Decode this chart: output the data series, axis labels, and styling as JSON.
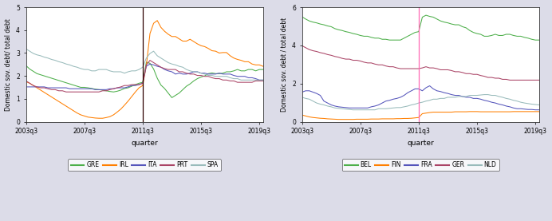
{
  "left_panel": {
    "ylabel": "Domestic sov. debt/ total debt",
    "xlabel": "quarter",
    "ylim": [
      0,
      5
    ],
    "yticks": [
      0,
      1,
      2,
      3,
      4,
      5
    ],
    "vline_x": 32,
    "vline_color": "#2f0000",
    "xtick_labels": [
      "2003q3",
      "2007q3",
      "2011q3",
      "2015q3",
      "2019q3"
    ],
    "xtick_positions": [
      0,
      16,
      32,
      48,
      64
    ],
    "series": {
      "GRE": {
        "color": "#4daf4a",
        "data": [
          2.45,
          2.3,
          2.2,
          2.1,
          2.05,
          2.0,
          1.95,
          1.9,
          1.85,
          1.8,
          1.75,
          1.7,
          1.65,
          1.6,
          1.55,
          1.5,
          1.5,
          1.48,
          1.45,
          1.42,
          1.4,
          1.38,
          1.35,
          1.32,
          1.3,
          1.33,
          1.38,
          1.45,
          1.48,
          1.55,
          1.62,
          1.68,
          1.72,
          2.6,
          2.55,
          2.3,
          1.9,
          1.6,
          1.45,
          1.25,
          1.05,
          1.15,
          1.25,
          1.4,
          1.55,
          1.65,
          1.78,
          1.88,
          1.95,
          2.0,
          2.1,
          2.13,
          2.1,
          2.1,
          2.12,
          2.18,
          2.18,
          2.22,
          2.28,
          2.22,
          2.22,
          2.28,
          2.28,
          2.22,
          2.28,
          2.28
        ]
      },
      "IRL": {
        "color": "#ff7f00",
        "data": [
          1.75,
          1.68,
          1.58,
          1.48,
          1.38,
          1.28,
          1.18,
          1.08,
          0.98,
          0.88,
          0.78,
          0.68,
          0.58,
          0.48,
          0.38,
          0.3,
          0.25,
          0.2,
          0.18,
          0.16,
          0.15,
          0.15,
          0.18,
          0.22,
          0.3,
          0.42,
          0.55,
          0.72,
          0.9,
          1.1,
          1.3,
          1.48,
          1.58,
          2.45,
          3.85,
          4.3,
          4.42,
          4.12,
          3.95,
          3.82,
          3.72,
          3.72,
          3.62,
          3.52,
          3.52,
          3.6,
          3.5,
          3.4,
          3.32,
          3.28,
          3.2,
          3.1,
          3.08,
          3.0,
          3.02,
          3.02,
          2.88,
          2.78,
          2.72,
          2.68,
          2.62,
          2.62,
          2.52,
          2.48,
          2.48,
          2.42
        ]
      },
      "ITA": {
        "color": "#5555bb",
        "data": [
          1.52,
          1.52,
          1.52,
          1.52,
          1.52,
          1.52,
          1.48,
          1.48,
          1.48,
          1.48,
          1.48,
          1.48,
          1.44,
          1.44,
          1.44,
          1.44,
          1.44,
          1.44,
          1.44,
          1.4,
          1.4,
          1.4,
          1.4,
          1.44,
          1.44,
          1.48,
          1.48,
          1.48,
          1.52,
          1.58,
          1.58,
          1.62,
          1.68,
          2.42,
          2.52,
          2.48,
          2.42,
          2.38,
          2.28,
          2.22,
          2.18,
          2.08,
          2.12,
          2.08,
          2.08,
          2.12,
          2.18,
          2.18,
          2.12,
          2.12,
          2.08,
          2.08,
          2.08,
          2.12,
          2.08,
          2.08,
          2.08,
          2.02,
          1.98,
          1.98,
          1.98,
          1.92,
          1.92,
          1.88,
          1.82,
          1.82
        ]
      },
      "PRT": {
        "color": "#aa4466",
        "data": [
          1.78,
          1.68,
          1.58,
          1.52,
          1.48,
          1.48,
          1.44,
          1.4,
          1.4,
          1.35,
          1.35,
          1.3,
          1.3,
          1.3,
          1.3,
          1.3,
          1.3,
          1.3,
          1.3,
          1.3,
          1.3,
          1.35,
          1.35,
          1.4,
          1.44,
          1.48,
          1.52,
          1.58,
          1.58,
          1.62,
          1.62,
          1.62,
          1.68,
          2.48,
          2.68,
          2.58,
          2.48,
          2.38,
          2.32,
          2.28,
          2.28,
          2.28,
          2.18,
          2.18,
          2.12,
          2.08,
          2.08,
          2.02,
          2.02,
          1.98,
          1.98,
          1.92,
          1.88,
          1.88,
          1.82,
          1.82,
          1.78,
          1.78,
          1.72,
          1.72,
          1.72,
          1.72,
          1.72,
          1.78,
          1.78,
          1.78
        ]
      },
      "SPA": {
        "color": "#99bbbb",
        "data": [
          3.18,
          3.08,
          2.98,
          2.92,
          2.88,
          2.82,
          2.78,
          2.72,
          2.68,
          2.62,
          2.58,
          2.52,
          2.48,
          2.42,
          2.38,
          2.32,
          2.28,
          2.28,
          2.22,
          2.22,
          2.28,
          2.28,
          2.28,
          2.22,
          2.18,
          2.18,
          2.18,
          2.12,
          2.18,
          2.22,
          2.22,
          2.28,
          2.38,
          2.78,
          2.98,
          3.08,
          2.88,
          2.78,
          2.68,
          2.58,
          2.52,
          2.48,
          2.42,
          2.38,
          2.28,
          2.22,
          2.18,
          2.18,
          2.12,
          2.08,
          2.02,
          2.02,
          1.98,
          1.98,
          1.98,
          1.98,
          1.92,
          1.88,
          1.88,
          1.82,
          1.82,
          1.82,
          1.82,
          1.82,
          1.82,
          1.82
        ]
      }
    }
  },
  "right_panel": {
    "ylabel": "Domestic sov. debt / total debt",
    "xlabel": "quarter",
    "ylim": [
      0,
      6
    ],
    "yticks": [
      0,
      2,
      4,
      6
    ],
    "vline_x": 32,
    "vline_color": "#ff69b4",
    "xtick_labels": [
      "2003q3",
      "2007q3",
      "2011q3",
      "2015q3",
      "2019q3"
    ],
    "xtick_positions": [
      0,
      16,
      32,
      48,
      64
    ],
    "series": {
      "BEL": {
        "color": "#4daf4a",
        "data": [
          5.5,
          5.38,
          5.28,
          5.22,
          5.18,
          5.12,
          5.08,
          5.02,
          4.98,
          4.88,
          4.82,
          4.78,
          4.72,
          4.68,
          4.62,
          4.58,
          4.52,
          4.48,
          4.48,
          4.42,
          4.38,
          4.38,
          4.32,
          4.32,
          4.28,
          4.28,
          4.28,
          4.28,
          4.38,
          4.48,
          4.58,
          4.68,
          4.72,
          5.48,
          5.58,
          5.52,
          5.48,
          5.38,
          5.28,
          5.22,
          5.18,
          5.12,
          5.08,
          5.08,
          4.98,
          4.92,
          4.78,
          4.68,
          4.62,
          4.58,
          4.48,
          4.48,
          4.52,
          4.58,
          4.52,
          4.52,
          4.58,
          4.58,
          4.52,
          4.48,
          4.48,
          4.42,
          4.38,
          4.32,
          4.28,
          4.28
        ]
      },
      "FIN": {
        "color": "#ff7f00",
        "data": [
          0.35,
          0.3,
          0.25,
          0.22,
          0.2,
          0.18,
          0.17,
          0.15,
          0.14,
          0.13,
          0.12,
          0.12,
          0.12,
          0.12,
          0.12,
          0.13,
          0.13,
          0.13,
          0.13,
          0.14,
          0.14,
          0.14,
          0.15,
          0.15,
          0.15,
          0.15,
          0.16,
          0.16,
          0.17,
          0.17,
          0.18,
          0.2,
          0.22,
          0.42,
          0.45,
          0.48,
          0.5,
          0.5,
          0.5,
          0.5,
          0.5,
          0.5,
          0.52,
          0.52,
          0.52,
          0.52,
          0.53,
          0.53,
          0.53,
          0.52,
          0.52,
          0.52,
          0.52,
          0.52,
          0.52,
          0.52,
          0.52,
          0.52,
          0.53,
          0.53,
          0.53,
          0.53,
          0.53,
          0.53,
          0.53,
          0.53
        ]
      },
      "FRA": {
        "color": "#5555bb",
        "data": [
          1.55,
          1.62,
          1.62,
          1.55,
          1.48,
          1.38,
          1.08,
          0.98,
          0.88,
          0.82,
          0.78,
          0.76,
          0.74,
          0.72,
          0.72,
          0.72,
          0.72,
          0.72,
          0.72,
          0.78,
          0.82,
          0.88,
          0.98,
          1.08,
          1.12,
          1.18,
          1.22,
          1.28,
          1.38,
          1.52,
          1.62,
          1.72,
          1.72,
          1.62,
          1.78,
          1.88,
          1.72,
          1.62,
          1.58,
          1.52,
          1.48,
          1.42,
          1.38,
          1.38,
          1.32,
          1.28,
          1.28,
          1.22,
          1.22,
          1.18,
          1.12,
          1.08,
          1.02,
          0.98,
          0.92,
          0.88,
          0.82,
          0.78,
          0.72,
          0.68,
          0.68,
          0.66,
          0.64,
          0.64,
          0.62,
          0.62
        ]
      },
      "GER": {
        "color": "#aa4466",
        "data": [
          3.98,
          3.88,
          3.78,
          3.72,
          3.68,
          3.62,
          3.58,
          3.52,
          3.48,
          3.42,
          3.38,
          3.32,
          3.28,
          3.28,
          3.22,
          3.22,
          3.18,
          3.12,
          3.08,
          3.08,
          3.02,
          2.98,
          2.98,
          2.92,
          2.88,
          2.88,
          2.82,
          2.78,
          2.78,
          2.78,
          2.78,
          2.78,
          2.78,
          2.82,
          2.88,
          2.82,
          2.82,
          2.78,
          2.72,
          2.72,
          2.72,
          2.68,
          2.62,
          2.62,
          2.58,
          2.52,
          2.52,
          2.48,
          2.48,
          2.42,
          2.38,
          2.32,
          2.32,
          2.28,
          2.28,
          2.22,
          2.22,
          2.18,
          2.18,
          2.18,
          2.18,
          2.18,
          2.18,
          2.18,
          2.18,
          2.18
        ]
      },
      "NLD": {
        "color": "#99bbbb",
        "data": [
          1.28,
          1.22,
          1.18,
          1.08,
          0.98,
          0.92,
          0.88,
          0.82,
          0.78,
          0.72,
          0.7,
          0.68,
          0.66,
          0.64,
          0.62,
          0.62,
          0.62,
          0.62,
          0.62,
          0.62,
          0.62,
          0.68,
          0.68,
          0.68,
          0.7,
          0.72,
          0.74,
          0.74,
          0.78,
          0.82,
          0.88,
          0.92,
          0.98,
          1.02,
          1.08,
          1.12,
          1.18,
          1.18,
          1.22,
          1.22,
          1.28,
          1.28,
          1.28,
          1.32,
          1.32,
          1.32,
          1.38,
          1.38,
          1.38,
          1.4,
          1.42,
          1.42,
          1.38,
          1.38,
          1.32,
          1.28,
          1.22,
          1.18,
          1.12,
          1.08,
          1.02,
          0.98,
          0.95,
          0.92,
          0.9,
          0.88
        ]
      }
    }
  },
  "legend_left": [
    {
      "label": "GRE",
      "color": "#4daf4a"
    },
    {
      "label": "IRL",
      "color": "#ff7f00"
    },
    {
      "label": "ITA",
      "color": "#5555bb"
    },
    {
      "label": "PRT",
      "color": "#aa4466"
    },
    {
      "label": "SPA",
      "color": "#99bbbb"
    }
  ],
  "legend_right": [
    {
      "label": "BEL",
      "color": "#4daf4a"
    },
    {
      "label": "FIN",
      "color": "#ff7f00"
    },
    {
      "label": "FRA",
      "color": "#5555bb"
    },
    {
      "label": "GER",
      "color": "#aa4466"
    },
    {
      "label": "NLD",
      "color": "#99bbbb"
    }
  ],
  "background_color": "#dcdce8",
  "plot_bg": "#ffffff"
}
